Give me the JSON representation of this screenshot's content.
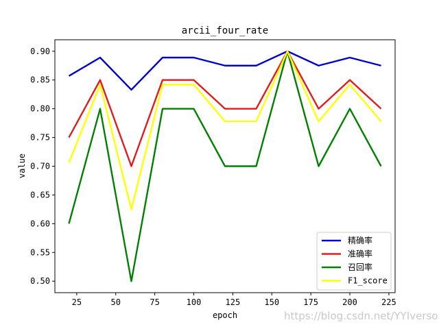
{
  "chart_data": {
    "type": "line",
    "title": "arcii_four_rate",
    "xlabel": "epoch",
    "ylabel": "value",
    "xlim": [
      11,
      229
    ],
    "ylim": [
      0.48,
      0.92
    ],
    "xticks": [
      25,
      50,
      75,
      100,
      125,
      150,
      175,
      200,
      225
    ],
    "yticks": [
      0.5,
      0.55,
      0.6,
      0.65,
      0.7,
      0.75,
      0.8,
      0.85,
      0.9
    ],
    "grid": false,
    "legend_position": "lower-right",
    "x": [
      20,
      40,
      60,
      80,
      100,
      120,
      140,
      160,
      180,
      200,
      220
    ],
    "series": [
      {
        "name": "精确率",
        "color": "#0000cc",
        "values": [
          0.857,
          0.889,
          0.833,
          0.889,
          0.889,
          0.875,
          0.875,
          0.9,
          0.875,
          0.889,
          0.875
        ]
      },
      {
        "name": "准确率",
        "color": "#e31a1c",
        "values": [
          0.75,
          0.85,
          0.7,
          0.85,
          0.85,
          0.8,
          0.8,
          0.9,
          0.8,
          0.85,
          0.8
        ]
      },
      {
        "name": "召回率",
        "color": "#008000",
        "values": [
          0.6,
          0.8,
          0.5,
          0.8,
          0.8,
          0.7,
          0.7,
          0.9,
          0.7,
          0.8,
          0.7
        ]
      },
      {
        "name": "F1_score",
        "color": "#ffff00",
        "values": [
          0.706,
          0.842,
          0.625,
          0.842,
          0.842,
          0.778,
          0.778,
          0.9,
          0.778,
          0.842,
          0.778
        ]
      }
    ]
  },
  "watermark": "https://blog.csdn.net/YYIverson"
}
